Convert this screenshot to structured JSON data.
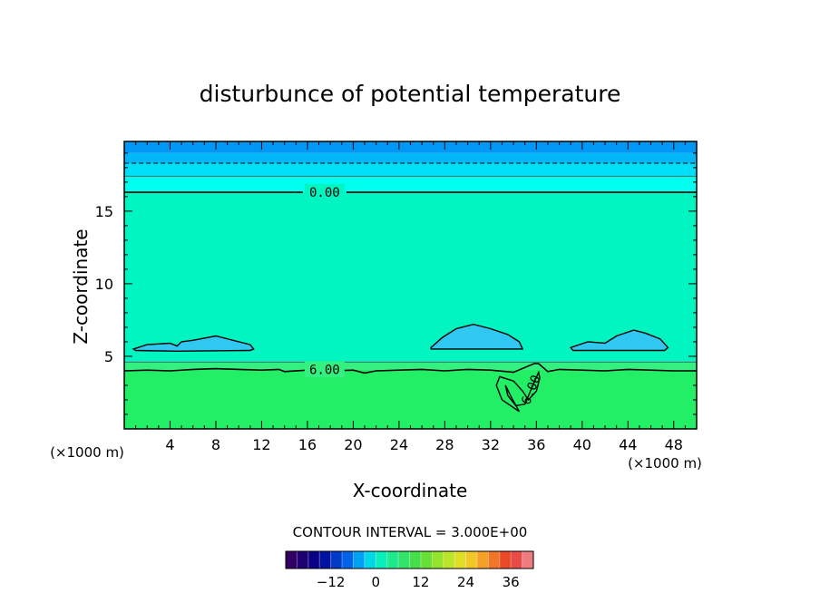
{
  "chart_data": {
    "type": "heatmap",
    "title": "disturbunce of potential temperature",
    "xlabel": "X-coordinate",
    "ylabel": "Z-coordinate",
    "x_unit_left": "(×1000 m)",
    "x_unit_right": "(×1000 m)",
    "xlim": [
      0,
      50
    ],
    "ylim": [
      0,
      19.8
    ],
    "x_ticks": [
      "4",
      "8",
      "12",
      "16",
      "20",
      "24",
      "28",
      "32",
      "36",
      "40",
      "44",
      "48"
    ],
    "x_tick_values": [
      4,
      8,
      12,
      16,
      20,
      24,
      28,
      32,
      36,
      40,
      44,
      48
    ],
    "y_ticks": [
      "5",
      "10",
      "15"
    ],
    "y_tick_values": [
      5,
      10,
      15
    ],
    "contour_labels": [
      {
        "text": "0.00",
        "x": 17.5,
        "z": 16.3
      },
      {
        "text": "6.00",
        "x": 17.5,
        "z": 4.1
      },
      {
        "text": "6.00",
        "x": 35.5,
        "z": 2.7
      }
    ],
    "bands": [
      {
        "z_from": 0,
        "z_to": 4.1,
        "color": "#22ee66"
      },
      {
        "z_from": 4.1,
        "z_to": 4.6,
        "color": "#33f080"
      },
      {
        "z_from": 4.6,
        "z_to": 16.3,
        "color": "#00f5c0"
      },
      {
        "z_from": 16.3,
        "z_to": 17.4,
        "color": "#00ffee"
      },
      {
        "z_from": 17.4,
        "z_to": 18.3,
        "color": "#00dff8"
      },
      {
        "z_from": 18.3,
        "z_to": 19.0,
        "color": "#00b8f8"
      },
      {
        "z_from": 19.0,
        "z_to": 19.8,
        "color": "#0098f4"
      }
    ],
    "blobs": [
      {
        "x": [
          0.8,
          2.0,
          4.0,
          4.6,
          5.0,
          6.0,
          8.0,
          9.5,
          11.0,
          11.3,
          11.0,
          4.5,
          1.0
        ],
        "z": [
          5.5,
          5.8,
          5.9,
          5.7,
          6.0,
          6.1,
          6.4,
          6.1,
          5.8,
          5.5,
          5.4,
          5.35,
          5.4
        ]
      },
      {
        "x": [
          26.8,
          27.8,
          29.0,
          30.5,
          32.0,
          33.5,
          34.5,
          34.8,
          26.8
        ],
        "z": [
          5.6,
          6.3,
          6.9,
          7.2,
          6.9,
          6.5,
          6.0,
          5.5,
          5.5
        ]
      },
      {
        "x": [
          39.0,
          40.5,
          42.0,
          43.0,
          44.5,
          45.5,
          46.8,
          47.5,
          47.2,
          39.2
        ],
        "z": [
          5.6,
          6.0,
          5.9,
          6.4,
          6.8,
          6.6,
          6.2,
          5.6,
          5.4,
          5.4
        ]
      }
    ],
    "lower_contour": {
      "x": [
        0,
        2,
        4,
        6,
        8,
        10,
        12,
        13.5,
        14,
        16,
        18,
        20,
        21,
        22,
        24,
        26,
        28,
        30,
        32,
        34,
        35.8,
        36.2,
        37,
        38,
        40,
        42,
        44,
        46,
        48,
        50
      ],
      "z": [
        4.0,
        4.05,
        4.0,
        4.1,
        4.15,
        4.1,
        4.05,
        4.1,
        3.95,
        4.05,
        4.0,
        4.05,
        3.85,
        4.0,
        4.05,
        4.1,
        4.0,
        4.1,
        4.05,
        3.9,
        4.5,
        4.5,
        3.95,
        4.1,
        4.05,
        4.0,
        4.1,
        4.05,
        4.0,
        4.0
      ]
    },
    "upper_contour_z": 16.3,
    "dashed_line_z": 18.3,
    "thin_lines_z": [
      4.6,
      17.4
    ],
    "loop": {
      "x": [
        34.5,
        33.0,
        32.5,
        32.8,
        34.0,
        34.8,
        35.3,
        36.0,
        36.3,
        36.2,
        35.8,
        35.0,
        34.2,
        33.5,
        33.3,
        33.8,
        34.5
      ],
      "z": [
        1.2,
        2.0,
        3.0,
        3.6,
        3.3,
        2.6,
        2.0,
        2.6,
        3.5,
        3.9,
        3.2,
        1.7,
        1.6,
        2.3,
        3.0,
        2.2,
        1.2
      ]
    },
    "colorbar": {
      "label": "CONTOUR INTERVAL = 3.000E+00",
      "min": -24,
      "max": 42,
      "step": 3,
      "ticks": [
        "-12",
        "0",
        "12",
        "24",
        "36"
      ],
      "tick_values": [
        -12,
        0,
        12,
        24,
        36
      ]
    }
  }
}
